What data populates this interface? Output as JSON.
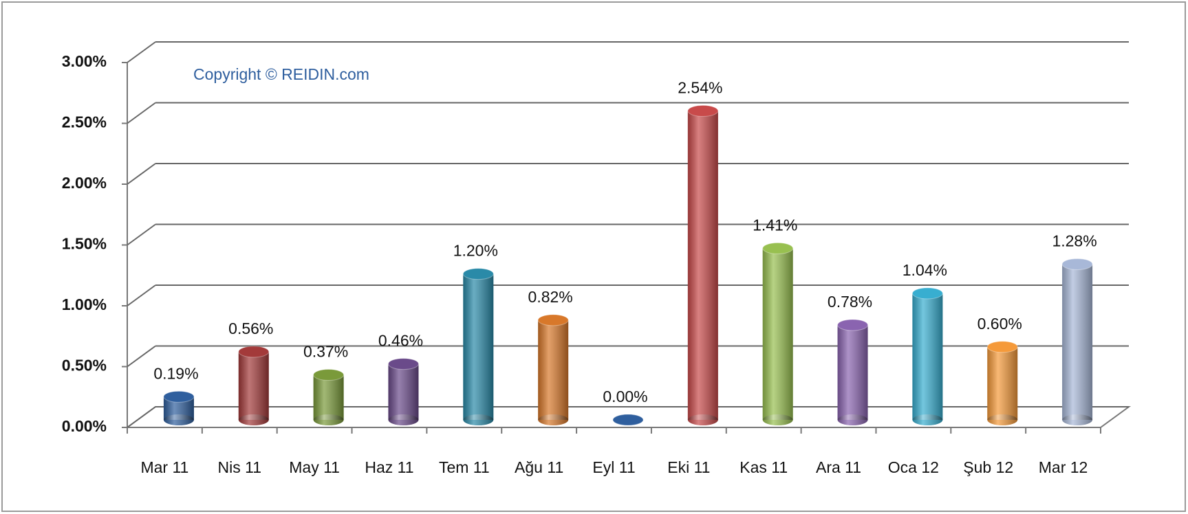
{
  "chart_data": {
    "type": "bar",
    "annotation": "Copyright © REIDIN.com",
    "categories": [
      "Mar 11",
      "Nis 11",
      "May 11",
      "Haz 11",
      "Tem 11",
      "Ağu 11",
      "Eyl 11",
      "Eki 11",
      "Kas 11",
      "Ara 11",
      "Oca 12",
      "Şub 12",
      "Mar 12"
    ],
    "values": [
      0.19,
      0.56,
      0.37,
      0.46,
      1.2,
      0.82,
      0.0,
      2.54,
      1.41,
      0.78,
      1.04,
      0.6,
      1.28
    ],
    "value_labels": [
      "0.19%",
      "0.56%",
      "0.37%",
      "0.46%",
      "1.20%",
      "0.82%",
      "0.00%",
      "2.54%",
      "1.41%",
      "0.78%",
      "1.04%",
      "0.60%",
      "1.28%"
    ],
    "colors": [
      "#2f5f9e",
      "#a33a3a",
      "#7a9a3a",
      "#6a4a8a",
      "#2a8aa8",
      "#d8782a",
      "#2f5f9e",
      "#c84a4a",
      "#98c050",
      "#8a64b0",
      "#38aed0",
      "#f59a3a",
      "#a8b8d8"
    ],
    "ylim": [
      0,
      3
    ],
    "yticks": [
      {
        "value": 0,
        "label": "0.00%"
      },
      {
        "value": 0.5,
        "label": "0.50%"
      },
      {
        "value": 1,
        "label": "1.00%"
      },
      {
        "value": 1.5,
        "label": "1.50%"
      },
      {
        "value": 2,
        "label": "2.00%"
      },
      {
        "value": 2.5,
        "label": "2.50%"
      },
      {
        "value": 3,
        "label": "3.00%"
      }
    ],
    "grid": true
  }
}
